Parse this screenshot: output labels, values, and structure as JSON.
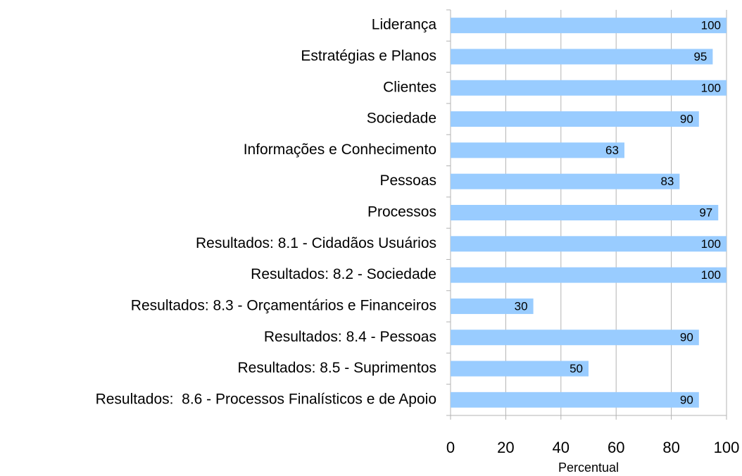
{
  "chart_data": {
    "type": "hbar",
    "categories": [
      "Liderança",
      "Estratégias e Planos",
      "Clientes",
      "Sociedade",
      "Informações e Conhecimento",
      "Pessoas",
      "Processos",
      "Resultados: 8.1 - Cidadãos Usuários",
      "Resultados: 8.2 - Sociedade",
      "Resultados: 8.3 - Orçamentários e Financeiros",
      "Resultados: 8.4 - Pessoas",
      "Resultados: 8.5 - Suprimentos",
      "Resultados:  8.6 - Processos Finalísticos e de Apoio"
    ],
    "values": [
      100,
      95,
      100,
      90,
      63,
      83,
      97,
      100,
      100,
      30,
      90,
      50,
      90
    ],
    "color": "#99ccff",
    "xlabel": "Percentual",
    "xlim": [
      0,
      100
    ],
    "xticks": [
      0,
      20,
      40,
      60,
      80,
      100
    ],
    "grid": true
  }
}
